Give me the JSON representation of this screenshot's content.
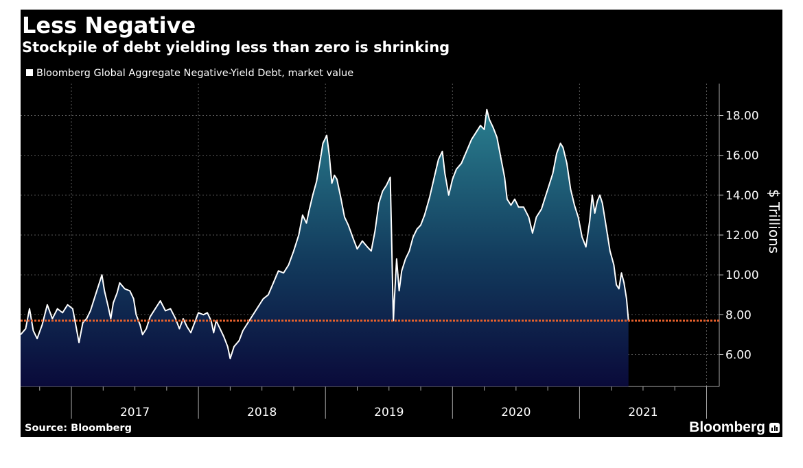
{
  "header": {
    "title": "Less Negative",
    "subtitle": "Stockpile of debt yielding less than zero is shrinking",
    "legend": "Bloomberg Global Aggregate Negative-Yield Debt, market value"
  },
  "footer": {
    "source": "Source: Bloomberg",
    "brand": "Bloomberg"
  },
  "colors": {
    "background": "#000000",
    "line": "#ffffff",
    "area_top": "#2a7f8f",
    "area_bottom": "#0a0a3a",
    "reference_line": "#e8612c",
    "grid": "#5a5a5a"
  },
  "chart_data": {
    "type": "area",
    "ylabel": "$ Trillions",
    "ylim": [
      4.4,
      19.6
    ],
    "xlim": [
      2016.6,
      2022.1
    ],
    "y_ticks": [
      "6.00",
      "8.00",
      "10.00",
      "12.00",
      "14.00",
      "16.00",
      "18.00"
    ],
    "x_tick_labels": [
      "2017",
      "2018",
      "2019",
      "2020",
      "2021"
    ],
    "grid": true,
    "reference_line": {
      "value": 7.7
    },
    "series": [
      {
        "points": [
          [
            2016.6,
            7.0
          ],
          [
            2016.64,
            7.3
          ],
          [
            2016.67,
            8.3
          ],
          [
            2016.7,
            7.2
          ],
          [
            2016.73,
            6.8
          ],
          [
            2016.77,
            7.5
          ],
          [
            2016.81,
            8.5
          ],
          [
            2016.85,
            7.8
          ],
          [
            2016.89,
            8.3
          ],
          [
            2016.93,
            8.1
          ],
          [
            2016.97,
            8.5
          ],
          [
            2017.01,
            8.3
          ],
          [
            2017.04,
            7.3
          ],
          [
            2017.06,
            6.6
          ],
          [
            2017.09,
            7.6
          ],
          [
            2017.12,
            7.8
          ],
          [
            2017.15,
            8.2
          ],
          [
            2017.19,
            9.0
          ],
          [
            2017.22,
            9.6
          ],
          [
            2017.24,
            10.0
          ],
          [
            2017.26,
            9.2
          ],
          [
            2017.29,
            8.4
          ],
          [
            2017.31,
            7.8
          ],
          [
            2017.33,
            8.6
          ],
          [
            2017.36,
            9.1
          ],
          [
            2017.38,
            9.6
          ],
          [
            2017.42,
            9.3
          ],
          [
            2017.46,
            9.2
          ],
          [
            2017.49,
            8.8
          ],
          [
            2017.51,
            8.0
          ],
          [
            2017.54,
            7.5
          ],
          [
            2017.56,
            7.0
          ],
          [
            2017.59,
            7.3
          ],
          [
            2017.62,
            7.9
          ],
          [
            2017.66,
            8.3
          ],
          [
            2017.7,
            8.7
          ],
          [
            2017.74,
            8.2
          ],
          [
            2017.78,
            8.3
          ],
          [
            2017.82,
            7.8
          ],
          [
            2017.85,
            7.3
          ],
          [
            2017.88,
            7.8
          ],
          [
            2017.91,
            7.4
          ],
          [
            2017.94,
            7.1
          ],
          [
            2017.97,
            7.6
          ],
          [
            2018.0,
            8.1
          ],
          [
            2018.04,
            8.0
          ],
          [
            2018.07,
            8.1
          ],
          [
            2018.1,
            7.7
          ],
          [
            2018.12,
            7.1
          ],
          [
            2018.14,
            7.7
          ],
          [
            2018.17,
            7.3
          ],
          [
            2018.2,
            6.9
          ],
          [
            2018.23,
            6.4
          ],
          [
            2018.25,
            5.8
          ],
          [
            2018.28,
            6.4
          ],
          [
            2018.32,
            6.7
          ],
          [
            2018.35,
            7.2
          ],
          [
            2018.39,
            7.6
          ],
          [
            2018.43,
            8.0
          ],
          [
            2018.47,
            8.4
          ],
          [
            2018.51,
            8.8
          ],
          [
            2018.55,
            9.0
          ],
          [
            2018.59,
            9.6
          ],
          [
            2018.63,
            10.2
          ],
          [
            2018.67,
            10.1
          ],
          [
            2018.71,
            10.5
          ],
          [
            2018.75,
            11.2
          ],
          [
            2018.79,
            12.0
          ],
          [
            2018.82,
            13.0
          ],
          [
            2018.85,
            12.6
          ],
          [
            2018.87,
            13.2
          ],
          [
            2018.9,
            14.0
          ],
          [
            2018.93,
            14.7
          ],
          [
            2018.96,
            15.8
          ],
          [
            2018.98,
            16.6
          ],
          [
            2019.01,
            17.0
          ],
          [
            2019.03,
            16.0
          ],
          [
            2019.05,
            14.6
          ],
          [
            2019.07,
            15.0
          ],
          [
            2019.09,
            14.8
          ],
          [
            2019.12,
            13.9
          ],
          [
            2019.15,
            12.9
          ],
          [
            2019.18,
            12.5
          ],
          [
            2019.22,
            11.8
          ],
          [
            2019.25,
            11.3
          ],
          [
            2019.29,
            11.7
          ],
          [
            2019.33,
            11.4
          ],
          [
            2019.36,
            11.2
          ],
          [
            2019.39,
            12.2
          ],
          [
            2019.42,
            13.6
          ],
          [
            2019.45,
            14.2
          ],
          [
            2019.48,
            14.5
          ],
          [
            2019.51,
            14.9
          ],
          [
            2019.52,
            12.0
          ],
          [
            2019.53,
            9.0
          ],
          [
            2019.535,
            7.7
          ],
          [
            2019.54,
            8.5
          ],
          [
            2019.56,
            10.8
          ],
          [
            2019.58,
            9.2
          ],
          [
            2019.6,
            10.2
          ],
          [
            2019.63,
            10.8
          ],
          [
            2019.66,
            11.2
          ],
          [
            2019.69,
            11.9
          ],
          [
            2019.72,
            12.3
          ],
          [
            2019.75,
            12.5
          ],
          [
            2019.78,
            13.0
          ],
          [
            2019.82,
            13.9
          ],
          [
            2019.86,
            15.0
          ],
          [
            2019.89,
            15.8
          ],
          [
            2019.92,
            16.2
          ],
          [
            2019.94,
            15.1
          ],
          [
            2019.97,
            14.0
          ],
          [
            2020.0,
            14.8
          ],
          [
            2020.03,
            15.3
          ],
          [
            2020.07,
            15.6
          ],
          [
            2020.11,
            16.2
          ],
          [
            2020.15,
            16.8
          ],
          [
            2020.19,
            17.2
          ],
          [
            2020.22,
            17.5
          ],
          [
            2020.25,
            17.3
          ],
          [
            2020.27,
            18.3
          ],
          [
            2020.29,
            17.8
          ],
          [
            2020.32,
            17.4
          ],
          [
            2020.35,
            16.9
          ],
          [
            2020.38,
            15.9
          ],
          [
            2020.41,
            14.9
          ],
          [
            2020.43,
            13.8
          ],
          [
            2020.46,
            13.5
          ],
          [
            2020.49,
            13.8
          ],
          [
            2020.52,
            13.4
          ],
          [
            2020.56,
            13.4
          ],
          [
            2020.6,
            12.9
          ],
          [
            2020.63,
            12.1
          ],
          [
            2020.66,
            12.9
          ],
          [
            2020.7,
            13.3
          ],
          [
            2020.73,
            13.9
          ],
          [
            2020.76,
            14.5
          ],
          [
            2020.79,
            15.1
          ],
          [
            2020.82,
            16.1
          ],
          [
            2020.85,
            16.6
          ],
          [
            2020.87,
            16.4
          ],
          [
            2020.9,
            15.6
          ],
          [
            2020.93,
            14.3
          ],
          [
            2020.96,
            13.5
          ],
          [
            2020.99,
            12.9
          ],
          [
            2021.02,
            11.9
          ],
          [
            2021.05,
            11.4
          ],
          [
            2021.08,
            12.7
          ],
          [
            2021.1,
            14.0
          ],
          [
            2021.12,
            13.1
          ],
          [
            2021.14,
            13.7
          ],
          [
            2021.16,
            14.0
          ],
          [
            2021.18,
            13.6
          ],
          [
            2021.21,
            12.4
          ],
          [
            2021.24,
            11.2
          ],
          [
            2021.27,
            10.5
          ],
          [
            2021.29,
            9.5
          ],
          [
            2021.31,
            9.3
          ],
          [
            2021.33,
            10.1
          ],
          [
            2021.35,
            9.6
          ],
          [
            2021.37,
            8.8
          ],
          [
            2021.385,
            7.7
          ]
        ]
      }
    ]
  }
}
